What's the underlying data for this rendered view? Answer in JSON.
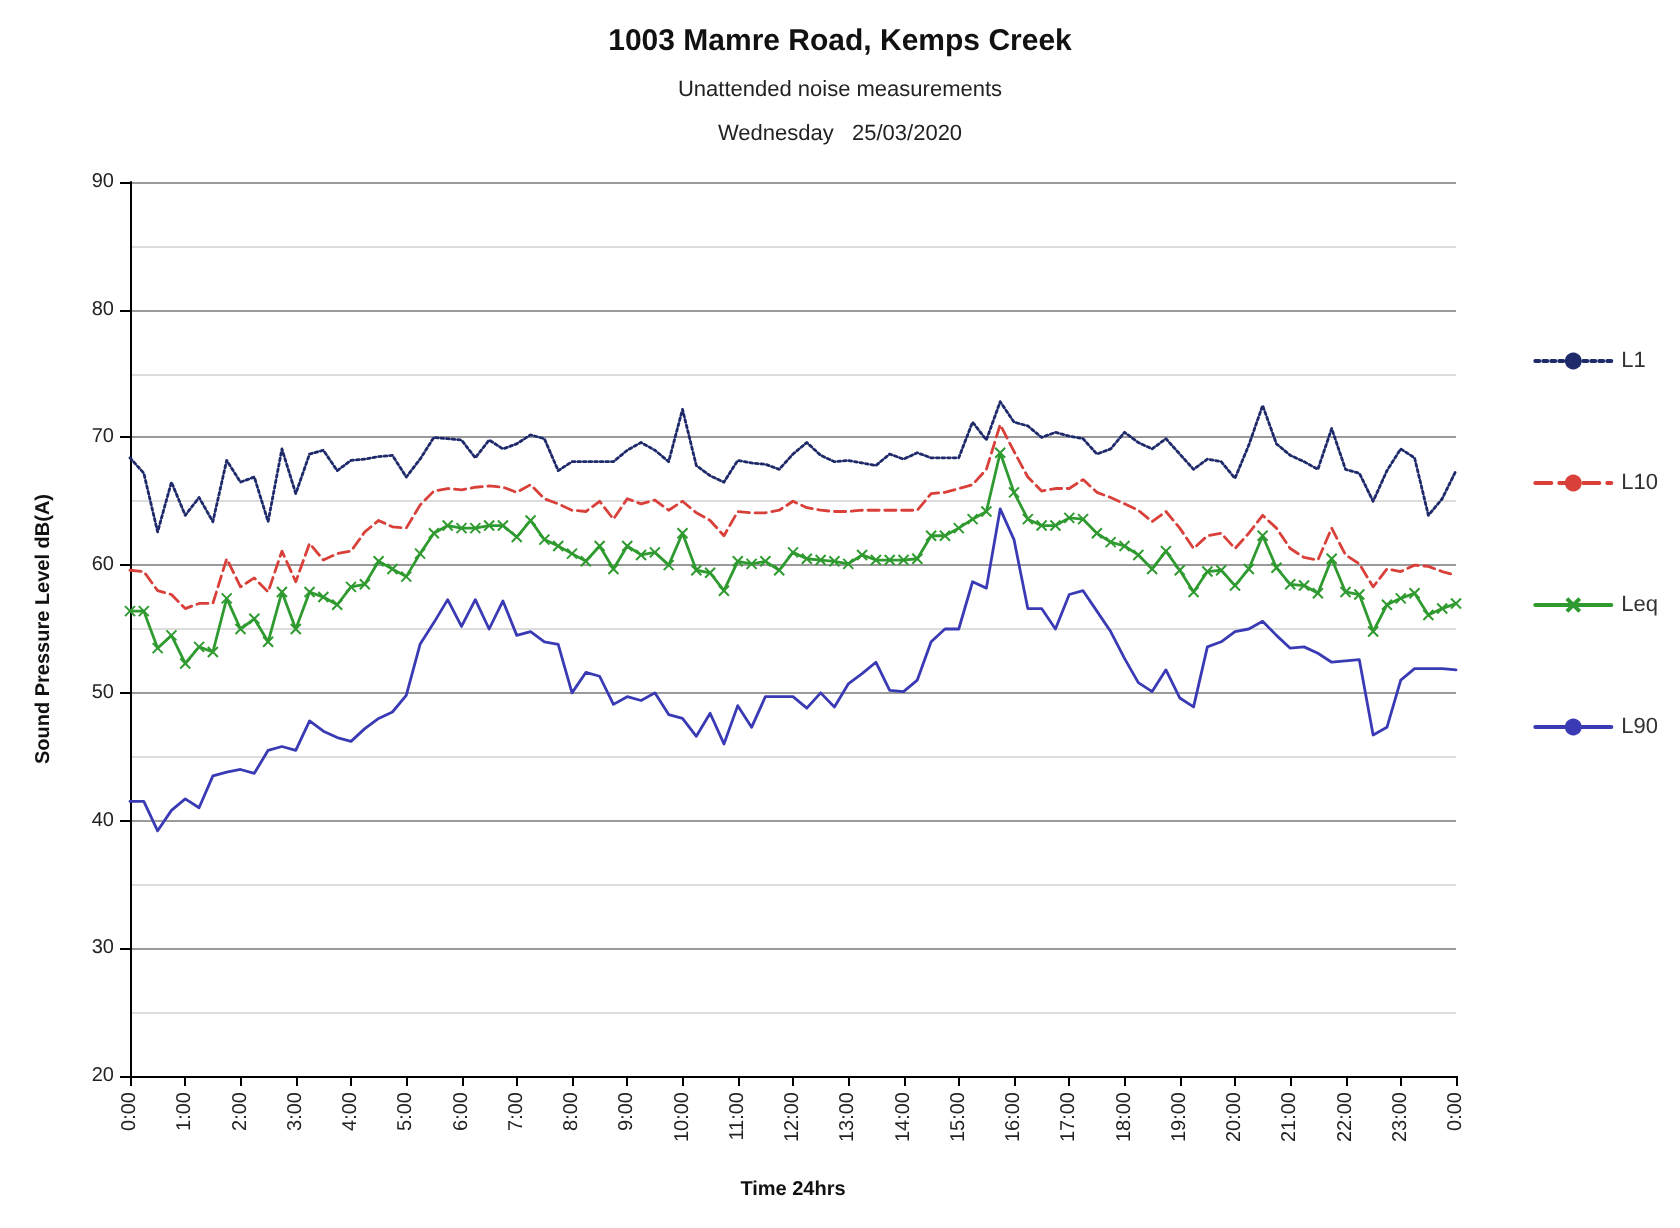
{
  "chart_data": {
    "type": "line",
    "title": "1003 Mamre Road, Kemps Creek",
    "subtitle": "Unattended noise measurements\nWednesday   25/03/2020",
    "xlabel": "Time 24hrs",
    "ylabel": "Sound Pressure Level dB(A)",
    "x": [
      0,
      0.25,
      0.5,
      0.75,
      1,
      1.25,
      1.5,
      1.75,
      2,
      2.25,
      2.5,
      2.75,
      3,
      3.25,
      3.5,
      3.75,
      4,
      4.25,
      4.5,
      4.75,
      5,
      5.25,
      5.5,
      5.75,
      6,
      6.25,
      6.5,
      6.75,
      7,
      7.25,
      7.5,
      7.75,
      8,
      8.25,
      8.5,
      8.75,
      9,
      9.25,
      9.5,
      9.75,
      10,
      10.25,
      10.5,
      10.75,
      11,
      11.25,
      11.5,
      11.75,
      12,
      12.25,
      12.5,
      12.75,
      13,
      13.25,
      13.5,
      13.75,
      14,
      14.25,
      14.5,
      14.75,
      15,
      15.25,
      15.5,
      15.75,
      16,
      16.25,
      16.5,
      16.75,
      17,
      17.25,
      17.5,
      17.75,
      18,
      18.25,
      18.5,
      18.75,
      19,
      19.25,
      19.5,
      19.75,
      20,
      20.25,
      20.5,
      20.75,
      21,
      21.25,
      21.5,
      21.75,
      22,
      22.25,
      22.5,
      22.75,
      23,
      23.25,
      23.5,
      23.75,
      24
    ],
    "series": [
      {
        "name": "L1",
        "color": "#1f2a6b",
        "line_style": "dotted",
        "marker": "none",
        "values": [
          68.4,
          67.2,
          62.6,
          66.5,
          63.9,
          65.3,
          63.4,
          68.2,
          66.5,
          66.9,
          63.4,
          69.1,
          65.6,
          68.7,
          69,
          67.4,
          68.2,
          68.3,
          68.5,
          68.6,
          66.9,
          68.3,
          70,
          69.9,
          69.8,
          68.4,
          69.8,
          69.1,
          69.5,
          70.2,
          69.9,
          67.4,
          68.1,
          68.1,
          68.1,
          68.1,
          69,
          69.6,
          69,
          68.1,
          72.2,
          67.8,
          67,
          66.5,
          68.2,
          68,
          67.9,
          67.5,
          68.7,
          69.6,
          68.6,
          68.1,
          68.2,
          68,
          67.8,
          68.7,
          68.3,
          68.8,
          68.4,
          68.4,
          68.4,
          71.2,
          69.8,
          72.8,
          71.2,
          70.9,
          70,
          70.4,
          70.1,
          69.9,
          68.7,
          69.1,
          70.4,
          69.6,
          69.1,
          69.9,
          68.7,
          67.5,
          68.3,
          68.1,
          66.8,
          69.4,
          72.5,
          69.5,
          68.6,
          68.1,
          67.5,
          70.7,
          67.5,
          67.2,
          65,
          67.4,
          69.1,
          68.4,
          63.9,
          65.2,
          67.4
        ]
      },
      {
        "name": "L10",
        "color": "#d9403a",
        "line_style": "dashed",
        "marker": "none",
        "values": [
          59.6,
          59.5,
          58,
          57.7,
          56.6,
          57,
          57,
          60.5,
          58.3,
          59,
          57.9,
          61.1,
          58.7,
          61.7,
          60.4,
          60.9,
          61.1,
          62.6,
          63.5,
          63,
          62.9,
          64.7,
          65.8,
          66,
          65.9,
          66.1,
          66.2,
          66.1,
          65.7,
          66.3,
          65.2,
          64.8,
          64.3,
          64.2,
          65,
          63.6,
          65.2,
          64.8,
          65.1,
          64.3,
          65,
          64.1,
          63.5,
          62.3,
          64.2,
          64.1,
          64.1,
          64.3,
          65,
          64.5,
          64.3,
          64.2,
          64.2,
          64.3,
          64.3,
          64.3,
          64.3,
          64.3,
          65.6,
          65.7,
          66,
          66.3,
          67.5,
          71,
          68.9,
          66.9,
          65.8,
          66,
          66,
          66.7,
          65.7,
          65.3,
          64.8,
          64.3,
          63.4,
          64.2,
          62.9,
          61.3,
          62.3,
          62.5,
          61.3,
          62.5,
          63.9,
          62.9,
          61.3,
          60.6,
          60.4,
          62.9,
          60.8,
          60.1,
          58.3,
          59.7,
          59.5,
          60,
          59.9,
          59.5,
          59.2
        ]
      },
      {
        "name": "Leq",
        "color": "#2f9a2f",
        "line_style": "solid",
        "marker": "cross",
        "values": [
          56.4,
          56.4,
          53.5,
          54.5,
          52.3,
          53.6,
          53.2,
          57.4,
          55,
          55.8,
          54,
          57.9,
          55,
          57.9,
          57.5,
          56.9,
          58.3,
          58.5,
          60.3,
          59.7,
          59.1,
          60.9,
          62.5,
          63.1,
          62.9,
          62.9,
          63.1,
          63.1,
          62.2,
          63.5,
          62,
          61.5,
          60.9,
          60.3,
          61.5,
          59.7,
          61.5,
          60.8,
          61,
          60,
          62.5,
          59.6,
          59.4,
          58,
          60.3,
          60.1,
          60.3,
          59.6,
          61,
          60.5,
          60.4,
          60.3,
          60.1,
          60.8,
          60.4,
          60.4,
          60.4,
          60.5,
          62.3,
          62.3,
          62.9,
          63.6,
          64.2,
          68.8,
          65.7,
          63.6,
          63.1,
          63.1,
          63.7,
          63.6,
          62.5,
          61.8,
          61.5,
          60.8,
          59.7,
          61.1,
          59.6,
          57.9,
          59.5,
          59.6,
          58.4,
          59.7,
          62.3,
          59.8,
          58.5,
          58.4,
          57.8,
          60.5,
          57.9,
          57.7,
          54.8,
          56.9,
          57.4,
          57.8,
          56.1,
          56.6,
          57
        ]
      },
      {
        "name": "L90",
        "color": "#3a3ab5",
        "line_style": "solid",
        "marker": "none",
        "values": [
          41.5,
          41.5,
          39.2,
          40.8,
          41.7,
          41,
          43.5,
          43.8,
          44,
          43.7,
          45.5,
          45.8,
          45.5,
          47.8,
          47,
          46.5,
          46.2,
          47.2,
          48,
          48.5,
          49.8,
          53.8,
          55.5,
          57.3,
          55.2,
          57.3,
          55,
          57.2,
          54.5,
          54.8,
          54,
          53.8,
          50,
          51.6,
          51.3,
          49.1,
          49.7,
          49.4,
          50,
          48.3,
          48,
          46.6,
          48.4,
          46,
          49,
          47.3,
          49.7,
          49.7,
          49.7,
          48.8,
          50,
          48.9,
          50.7,
          51.5,
          52.4,
          50.2,
          50.1,
          51,
          54,
          55,
          55,
          58.7,
          58.2,
          64.4,
          62,
          56.6,
          56.6,
          55,
          57.7,
          58,
          56.4,
          54.8,
          52.7,
          50.8,
          50.1,
          51.8,
          49.6,
          48.9,
          53.6,
          54,
          54.8,
          55,
          55.6,
          54.5,
          53.5,
          53.6,
          53.1,
          52.4,
          52.5,
          52.6,
          46.7,
          47.3,
          51,
          51.9,
          51.9,
          51.9,
          51.8
        ]
      }
    ],
    "xlim": [
      0,
      24
    ],
    "xticks": [
      {
        "value": 0,
        "label": "0:00"
      },
      {
        "value": 1,
        "label": "1:00"
      },
      {
        "value": 2,
        "label": "2:00"
      },
      {
        "value": 3,
        "label": "3:00"
      },
      {
        "value": 4,
        "label": "4:00"
      },
      {
        "value": 5,
        "label": "5:00"
      },
      {
        "value": 6,
        "label": "6:00"
      },
      {
        "value": 7,
        "label": "7:00"
      },
      {
        "value": 8,
        "label": "8:00"
      },
      {
        "value": 9,
        "label": "9:00"
      },
      {
        "value": 10,
        "label": "10:00"
      },
      {
        "value": 11,
        "label": "11:00"
      },
      {
        "value": 12,
        "label": "12:00"
      },
      {
        "value": 13,
        "label": "13:00"
      },
      {
        "value": 14,
        "label": "14:00"
      },
      {
        "value": 15,
        "label": "15:00"
      },
      {
        "value": 16,
        "label": "16:00"
      },
      {
        "value": 17,
        "label": "17:00"
      },
      {
        "value": 18,
        "label": "18:00"
      },
      {
        "value": 19,
        "label": "19:00"
      },
      {
        "value": 20,
        "label": "20:00"
      },
      {
        "value": 21,
        "label": "21:00"
      },
      {
        "value": 22,
        "label": "22:00"
      },
      {
        "value": 23,
        "label": "23:00"
      },
      {
        "value": 24,
        "label": "0:00"
      }
    ],
    "ylim": [
      20,
      90
    ],
    "yticks": [
      20,
      30,
      40,
      50,
      60,
      70,
      80,
      90
    ],
    "grid": "y",
    "legend": "right"
  }
}
